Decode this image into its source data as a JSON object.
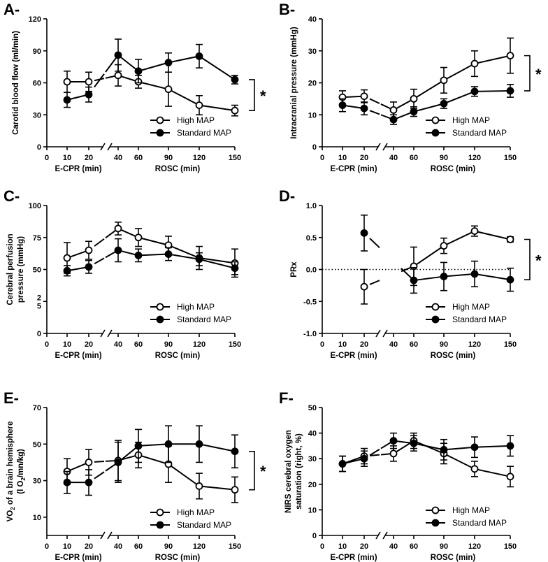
{
  "chart_data": [
    {
      "panel": "A-",
      "type": "line",
      "ylabel": "Carotid blood flow (ml/min)",
      "ylim": [
        0,
        120
      ],
      "yticks": [
        0,
        30,
        60,
        90,
        120
      ],
      "ytick_labels": [
        "0",
        "30",
        "60",
        "90",
        "120"
      ],
      "xlabel_left": "E-CPR (min)",
      "xlabel_right": "ROSC (min)",
      "xtick_labels": [
        "0",
        "10",
        "20",
        "40",
        "60",
        "90",
        "120",
        "150"
      ],
      "significance": "*",
      "legend": [
        "High MAP",
        "Standard MAP"
      ],
      "series": [
        {
          "name": "High MAP",
          "marker": "open",
          "x": [
            10,
            20,
            40,
            60,
            90,
            120,
            150
          ],
          "y": [
            61,
            61,
            67,
            61,
            54,
            39,
            34
          ],
          "err": [
            10,
            9,
            10,
            6,
            16,
            9,
            5
          ]
        },
        {
          "name": "Standard MAP",
          "marker": "filled",
          "x": [
            10,
            20,
            40,
            60,
            90,
            120,
            150
          ],
          "y": [
            44,
            49,
            86,
            71,
            79,
            85,
            63
          ],
          "err": [
            7,
            7,
            15,
            11,
            9,
            11,
            4
          ]
        }
      ]
    },
    {
      "panel": "B-",
      "type": "line",
      "ylabel": "Intracranial pressure (mmHg)",
      "ylim": [
        0,
        40
      ],
      "yticks": [
        0,
        10,
        20,
        30,
        40
      ],
      "ytick_labels": [
        "0",
        "10",
        "20",
        "30",
        "40"
      ],
      "xlabel_left": "E-CPR (min)",
      "xlabel_right": "ROSC (min)",
      "xtick_labels": [
        "0",
        "10",
        "20",
        "40",
        "60",
        "90",
        "120",
        "150"
      ],
      "significance": "*",
      "legend": [
        "High MAP",
        "Standard MAP"
      ],
      "series": [
        {
          "name": "High MAP",
          "marker": "open",
          "x": [
            10,
            20,
            40,
            60,
            90,
            120,
            150
          ],
          "y": [
            15.5,
            15.8,
            11.5,
            15,
            20.8,
            26,
            28.5
          ],
          "err": [
            2,
            2,
            2.5,
            3,
            4,
            4,
            5.5
          ]
        },
        {
          "name": "Standard MAP",
          "marker": "filled",
          "x": [
            10,
            20,
            40,
            60,
            90,
            120,
            150
          ],
          "y": [
            13,
            12,
            8.5,
            11,
            13.5,
            17.3,
            17.5
          ],
          "err": [
            2,
            2,
            1.5,
            1.5,
            1.5,
            1.5,
            2
          ]
        }
      ]
    },
    {
      "panel": "C-",
      "type": "line",
      "ylabel": "Cerebral perfusion pressure (mmHg)",
      "ylabel_lines": [
        "Cerebral perfusion",
        "pressure (mmHg)"
      ],
      "ylim": [
        0,
        100
      ],
      "yticks": [
        0,
        25,
        50,
        75,
        100
      ],
      "ytick_labels": [
        "0",
        "2\n5",
        "50",
        "75",
        "100"
      ],
      "xlabel_left": "E-CPR (min)",
      "xlabel_right": "ROSC (min)",
      "xtick_labels": [
        "0",
        "10",
        "20",
        "40",
        "60",
        "90",
        "120",
        "150"
      ],
      "significance": "",
      "legend": [
        "High MAP",
        "Standard MAP"
      ],
      "series": [
        {
          "name": "High MAP",
          "marker": "open",
          "x": [
            10,
            20,
            40,
            60,
            90,
            120,
            150
          ],
          "y": [
            59,
            65,
            82,
            75,
            69,
            59,
            55
          ],
          "err": [
            12,
            7,
            5,
            7,
            7,
            9,
            11
          ]
        },
        {
          "name": "Standard MAP",
          "marker": "filled",
          "x": [
            10,
            20,
            40,
            60,
            90,
            120,
            150
          ],
          "y": [
            49,
            52,
            65,
            61,
            62,
            58,
            51
          ],
          "err": [
            4,
            5,
            9,
            5,
            5,
            5,
            5
          ]
        }
      ]
    },
    {
      "panel": "D-",
      "type": "line",
      "ylabel": "PRx",
      "ylim": [
        -1.0,
        1.0
      ],
      "yticks": [
        -1.0,
        -0.5,
        0.0,
        0.5,
        1.0
      ],
      "ytick_labels": [
        "-1.0",
        "-0.5",
        "0.0",
        "0.5",
        "1.0"
      ],
      "xlabel_left": "E-CPR (min)",
      "xlabel_right": "ROSC (min)",
      "xtick_labels": [
        "0",
        "10",
        "20",
        "40",
        "60",
        "90",
        "120",
        "150"
      ],
      "significance": "*",
      "reference_line_y": 0,
      "legend": [
        "High MAP",
        "Standard MAP"
      ],
      "series": [
        {
          "name": "High MAP",
          "marker": "open",
          "x": [
            20,
            60,
            90,
            120,
            150
          ],
          "y": [
            -0.27,
            0.05,
            0.37,
            0.6,
            0.47
          ],
          "err": [
            0.27,
            0.3,
            0.12,
            0.08,
            0.04
          ]
        },
        {
          "name": "Standard MAP",
          "marker": "filled",
          "x": [
            20,
            60,
            90,
            120,
            150
          ],
          "y": [
            0.57,
            -0.17,
            -0.11,
            -0.07,
            -0.16
          ],
          "err": [
            0.28,
            0.2,
            0.22,
            0.2,
            0.18
          ]
        }
      ]
    },
    {
      "panel": "E-",
      "type": "line",
      "ylabel": "VO2 of a brain hemisphere (l O2/mn/kg)",
      "ylabel_lines": [
        "VO",
        "2",
        " of a brain hemisphere",
        "(l O",
        "2",
        "/mn/kg)"
      ],
      "ylim": [
        0,
        70
      ],
      "yticks": [
        10,
        30,
        50,
        70
      ],
      "ytick_labels": [
        "10",
        "30",
        "50",
        "70"
      ],
      "xlabel_left": "E-CPR (min)",
      "xlabel_right": "ROSC (min)",
      "xtick_labels": [
        "0",
        "10",
        "20",
        "40",
        "60",
        "90",
        "120",
        "150"
      ],
      "significance": "*",
      "legend": [
        "High MAP",
        "Standard MAP"
      ],
      "series": [
        {
          "name": "High MAP",
          "marker": "open",
          "x": [
            10,
            20,
            40,
            60,
            90,
            120,
            150
          ],
          "y": [
            35,
            40,
            41,
            44,
            39,
            27,
            25
          ],
          "err": [
            7,
            7,
            11,
            7,
            10,
            7,
            7
          ]
        },
        {
          "name": "Standard MAP",
          "marker": "filled",
          "x": [
            10,
            20,
            40,
            60,
            90,
            120,
            150
          ],
          "y": [
            29,
            29,
            40,
            49,
            50,
            50,
            46
          ],
          "err": [
            6,
            7,
            11,
            9,
            10,
            10,
            9
          ]
        }
      ]
    },
    {
      "panel": "F-",
      "type": "line",
      "ylabel": "NIRS cerebral oxygen saturation (right, %)",
      "ylabel_lines": [
        "NIRS cerebral oxygen",
        "saturation (right, %)"
      ],
      "ylim": [
        0,
        50
      ],
      "yticks": [
        0,
        10,
        20,
        30,
        40,
        50
      ],
      "ytick_labels": [
        "0",
        "10",
        "20",
        "30",
        "40",
        "50"
      ],
      "xlabel_left": "E-CPR (min)",
      "xlabel_right": "ROSC (min)",
      "xtick_labels": [
        "0",
        "10",
        "20",
        "40",
        "60",
        "90",
        "120",
        "150"
      ],
      "significance": "",
      "legend": [
        "High MAP",
        "Standard MAP"
      ],
      "series": [
        {
          "name": "High MAP",
          "marker": "open",
          "x": [
            10,
            20,
            40,
            60,
            90,
            120,
            150
          ],
          "y": [
            28,
            31,
            32,
            37,
            32,
            26,
            23
          ],
          "err": [
            3,
            3,
            3,
            3,
            4,
            3,
            4
          ]
        },
        {
          "name": "Standard MAP",
          "marker": "filled",
          "x": [
            10,
            20,
            40,
            60,
            90,
            120,
            150
          ],
          "y": [
            28,
            30,
            37,
            36,
            33.5,
            34.5,
            35
          ],
          "err": [
            3,
            3,
            3,
            3,
            4,
            4,
            4
          ]
        }
      ]
    }
  ]
}
